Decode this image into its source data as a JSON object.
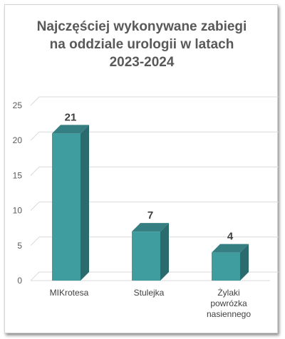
{
  "chart_data": {
    "type": "bar",
    "title": "Najczęściej wykonywane zabiegi\nna oddziale urologii w latach\n2023-2024",
    "categories": [
      [
        "MIKrotesa"
      ],
      [
        "Stulejka"
      ],
      [
        "Żylaki",
        "powrózka",
        "nasiennego"
      ]
    ],
    "values": [
      21,
      7,
      4
    ],
    "data_labels": [
      "21",
      "7",
      "4"
    ],
    "ylim": [
      0,
      25
    ],
    "yticks": [
      0,
      5,
      10,
      15,
      20,
      25
    ],
    "ytick_labels": [
      "0",
      "5",
      "10",
      "15",
      "20",
      "25"
    ],
    "grid": true,
    "style": "3d-column",
    "colors": {
      "bar_front": "#3f9c9f",
      "bar_side": "#2a6b6e",
      "bar_top": "#357f82",
      "grid": "#d9d9d9",
      "title": "#595959"
    }
  }
}
